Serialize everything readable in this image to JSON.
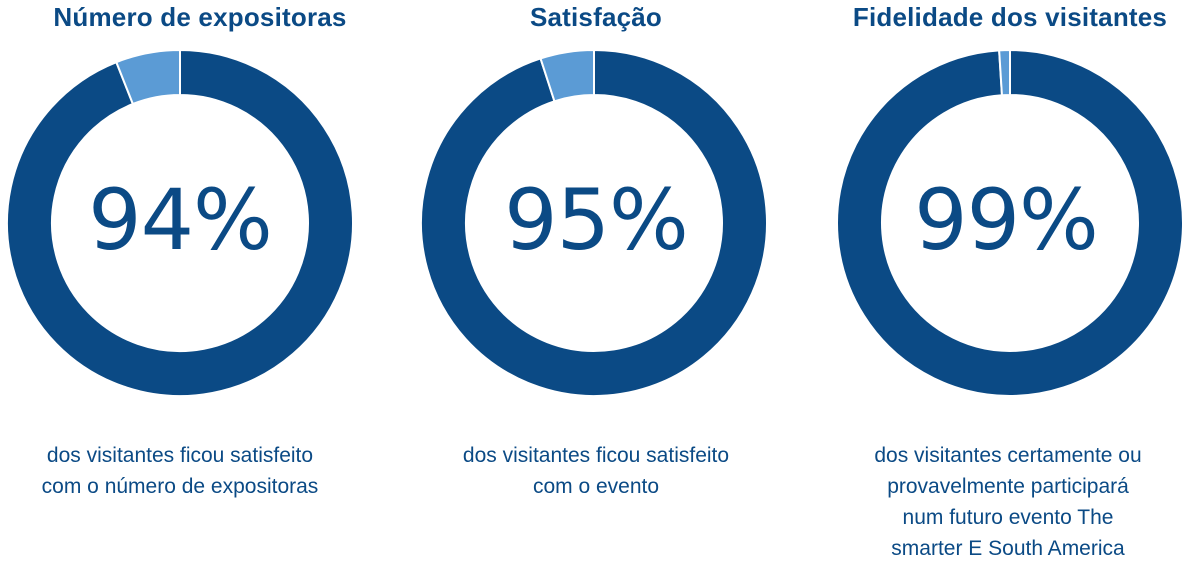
{
  "colors": {
    "primary": "#0b4a85",
    "secondary": "#5b9bd5",
    "separator": "#ffffff"
  },
  "chart_data": [
    {
      "type": "pie",
      "style": "donut",
      "title": "Número de expositoras",
      "slices": [
        {
          "value": 94,
          "color": "#0b4a85"
        },
        {
          "value": 6,
          "color": "#5b9bd5"
        }
      ],
      "center_label": "94%",
      "caption": "dos visitantes ficou satisfeito\ncom o número de expositoras"
    },
    {
      "type": "pie",
      "style": "donut",
      "title": "Satisfação",
      "slices": [
        {
          "value": 95,
          "color": "#0b4a85"
        },
        {
          "value": 5,
          "color": "#5b9bd5"
        }
      ],
      "center_label": "95%",
      "caption": "dos visitantes ficou satisfeito\ncom o evento"
    },
    {
      "type": "pie",
      "style": "donut",
      "title": "Fidelidade dos visitantes",
      "slices": [
        {
          "value": 99,
          "color": "#0b4a85"
        },
        {
          "value": 1,
          "color": "#5b9bd5"
        }
      ],
      "center_label": "99%",
      "caption": "dos visitantes certamente ou\nprovavelmente participará\nnum futuro evento The\nsmarter E South America"
    }
  ]
}
